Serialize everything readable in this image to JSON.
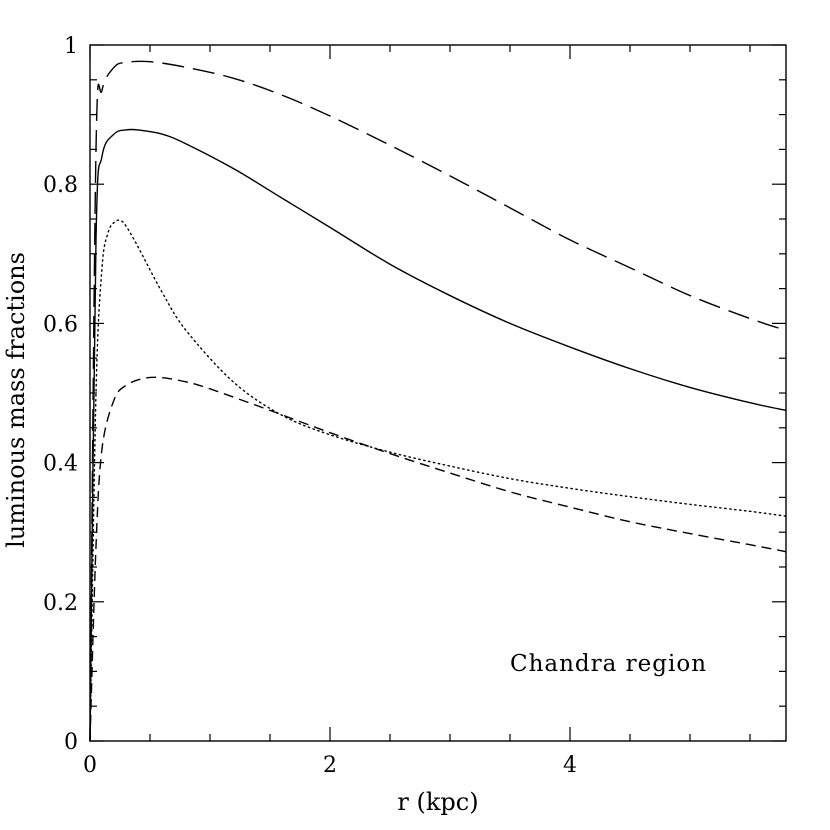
{
  "chart_data": {
    "type": "line",
    "title": "",
    "xlabel": "r (kpc)",
    "ylabel": "luminous mass fractions",
    "xlim": [
      0,
      5.8
    ],
    "ylim": [
      0,
      1
    ],
    "x_ticks": [
      0,
      2,
      4
    ],
    "y_ticks": [
      0,
      0.2,
      0.4,
      0.6,
      0.8,
      1
    ],
    "x_tick_labels": [
      "0",
      "2",
      "4"
    ],
    "y_tick_labels": [
      "0",
      "0.2",
      "0.4",
      "0.6",
      "0.8",
      "1"
    ],
    "annotation": "Chandra region",
    "series": [
      {
        "name": "long-dashed",
        "dash": "long",
        "x": [
          0,
          0.05,
          0.1,
          0.2,
          0.3,
          0.5,
          0.8,
          1.2,
          1.6,
          2.0,
          2.5,
          3.0,
          3.5,
          4.0,
          4.5,
          5.0,
          5.5,
          5.8
        ],
        "y": [
          0,
          0.85,
          0.935,
          0.968,
          0.975,
          0.976,
          0.968,
          0.952,
          0.928,
          0.898,
          0.856,
          0.812,
          0.766,
          0.72,
          0.68,
          0.64,
          0.607,
          0.59
        ]
      },
      {
        "name": "solid",
        "dash": "solid",
        "x": [
          0,
          0.05,
          0.1,
          0.2,
          0.3,
          0.4,
          0.6,
          0.8,
          1.2,
          1.6,
          2.0,
          2.5,
          3.0,
          3.5,
          4.0,
          4.5,
          5.0,
          5.5,
          5.8
        ],
        "y": [
          0,
          0.72,
          0.84,
          0.872,
          0.878,
          0.878,
          0.872,
          0.858,
          0.822,
          0.78,
          0.738,
          0.685,
          0.64,
          0.6,
          0.566,
          0.535,
          0.508,
          0.486,
          0.475
        ]
      },
      {
        "name": "dotted",
        "dash": "dotted",
        "x": [
          0,
          0.05,
          0.1,
          0.15,
          0.2,
          0.25,
          0.3,
          0.4,
          0.6,
          0.8,
          1.2,
          1.6,
          2.0,
          2.5,
          3.0,
          3.5,
          4.0,
          4.5,
          5.0,
          5.5,
          5.8
        ],
        "y": [
          0,
          0.5,
          0.68,
          0.73,
          0.745,
          0.748,
          0.74,
          0.71,
          0.645,
          0.59,
          0.515,
          0.468,
          0.44,
          0.415,
          0.395,
          0.377,
          0.363,
          0.351,
          0.34,
          0.33,
          0.323
        ]
      },
      {
        "name": "short-dashed",
        "dash": "short",
        "x": [
          0,
          0.05,
          0.1,
          0.2,
          0.3,
          0.45,
          0.6,
          0.8,
          1.0,
          1.5,
          2.0,
          2.5,
          3.0,
          3.5,
          4.0,
          4.5,
          5.0,
          5.5,
          5.8
        ],
        "y": [
          0,
          0.28,
          0.42,
          0.49,
          0.511,
          0.521,
          0.522,
          0.516,
          0.506,
          0.475,
          0.443,
          0.413,
          0.385,
          0.358,
          0.336,
          0.315,
          0.298,
          0.282,
          0.272
        ]
      }
    ]
  }
}
